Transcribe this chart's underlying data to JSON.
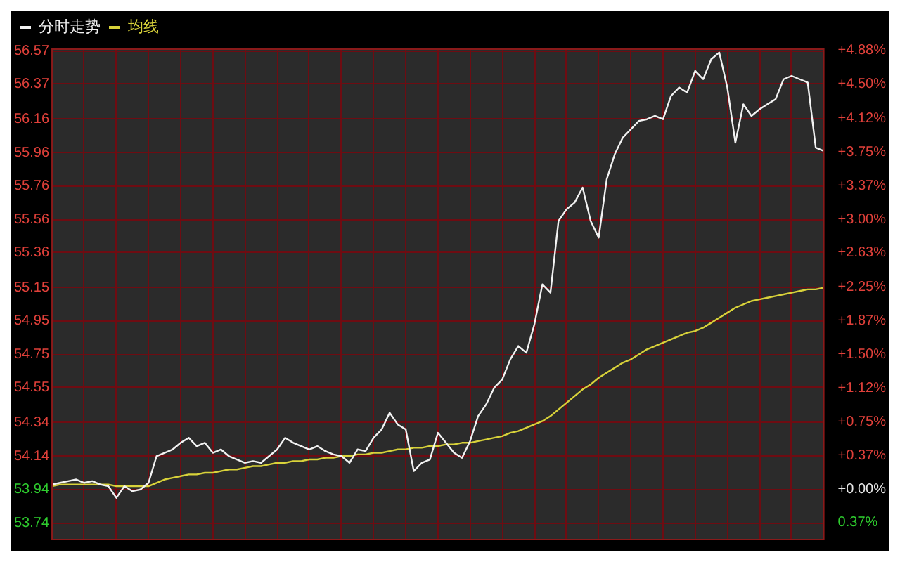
{
  "chart_data": {
    "type": "line",
    "categories": [
      null,
      null,
      null,
      null,
      null,
      null,
      null,
      null,
      null,
      null,
      null,
      null,
      null,
      null,
      null,
      null,
      null,
      null,
      null,
      null,
      null,
      null,
      null,
      null,
      null,
      null,
      null,
      null,
      null,
      null,
      null,
      null,
      null,
      null,
      null,
      null,
      null,
      null,
      null,
      null,
      null,
      null,
      null,
      null,
      null,
      null,
      null,
      null,
      null,
      null,
      null,
      null,
      null,
      null,
      null,
      null,
      null,
      null,
      null,
      null,
      null,
      null,
      null,
      null,
      null,
      null,
      null,
      null,
      null,
      null,
      null,
      null,
      null,
      null,
      null,
      null,
      null,
      null,
      null,
      null,
      null,
      null,
      null,
      null,
      null,
      null,
      null,
      null,
      null,
      null,
      null,
      null,
      null,
      null,
      null,
      null,
      null
    ],
    "series": [
      {
        "name": "分时走势",
        "color": "#f2f2f2",
        "values": [
          53.97,
          53.98,
          53.99,
          54.0,
          53.98,
          53.99,
          53.97,
          53.96,
          53.89,
          53.96,
          53.93,
          53.94,
          53.98,
          54.14,
          54.16,
          54.18,
          54.22,
          54.25,
          54.2,
          54.22,
          54.16,
          54.18,
          54.14,
          54.12,
          54.1,
          54.11,
          54.1,
          54.14,
          54.18,
          54.25,
          54.22,
          54.2,
          54.18,
          54.2,
          54.17,
          54.15,
          54.14,
          54.1,
          54.18,
          54.17,
          54.25,
          54.3,
          54.4,
          54.33,
          54.3,
          54.05,
          54.1,
          54.12,
          54.28,
          54.22,
          54.16,
          54.13,
          54.23,
          54.38,
          54.45,
          54.55,
          54.6,
          54.72,
          54.8,
          54.76,
          54.93,
          55.17,
          55.12,
          55.55,
          55.62,
          55.66,
          55.75,
          55.55,
          55.45,
          55.8,
          55.95,
          56.05,
          56.1,
          56.15,
          56.16,
          56.18,
          56.16,
          56.3,
          56.35,
          56.32,
          56.45,
          56.4,
          56.52,
          56.56,
          56.35,
          56.02,
          56.25,
          56.18,
          56.22,
          56.25,
          56.28,
          56.4,
          56.42,
          56.4,
          56.38,
          55.99,
          55.97
        ]
      },
      {
        "name": "均线",
        "color": "#d8d23a",
        "values": [
          53.96,
          53.97,
          53.97,
          53.97,
          53.97,
          53.97,
          53.97,
          53.97,
          53.96,
          53.96,
          53.96,
          53.96,
          53.96,
          53.98,
          54.0,
          54.01,
          54.02,
          54.03,
          54.03,
          54.04,
          54.04,
          54.05,
          54.06,
          54.06,
          54.07,
          54.08,
          54.08,
          54.09,
          54.1,
          54.1,
          54.11,
          54.11,
          54.12,
          54.12,
          54.13,
          54.13,
          54.14,
          54.14,
          54.15,
          54.15,
          54.16,
          54.16,
          54.17,
          54.18,
          54.18,
          54.19,
          54.19,
          54.2,
          54.2,
          54.21,
          54.21,
          54.22,
          54.22,
          54.23,
          54.24,
          54.25,
          54.26,
          54.28,
          54.29,
          54.31,
          54.33,
          54.35,
          54.38,
          54.42,
          54.46,
          54.5,
          54.54,
          54.57,
          54.61,
          54.64,
          54.67,
          54.7,
          54.72,
          54.75,
          54.78,
          54.8,
          54.82,
          54.84,
          54.86,
          54.88,
          54.89,
          54.91,
          54.94,
          54.97,
          55.0,
          55.03,
          55.05,
          55.07,
          55.08,
          55.09,
          55.1,
          55.11,
          55.12,
          55.13,
          55.14,
          55.14,
          55.15
        ]
      }
    ],
    "ylim": [
      53.64,
      56.58
    ],
    "yticks": [
      56.57,
      56.37,
      56.16,
      55.96,
      55.76,
      55.56,
      55.36,
      55.15,
      54.95,
      54.75,
      54.55,
      54.34,
      54.14,
      53.94,
      53.74
    ],
    "y2lim": [
      -0.56,
      4.89
    ],
    "y2ticks": [
      {
        "value": 4.88,
        "label": "+4.88%"
      },
      {
        "value": 4.5,
        "label": "+4.50%"
      },
      {
        "value": 4.12,
        "label": "+4.12%"
      },
      {
        "value": 3.75,
        "label": "+3.75%"
      },
      {
        "value": 3.37,
        "label": "+3.37%"
      },
      {
        "value": 3.0,
        "label": "+3.00%"
      },
      {
        "value": 2.63,
        "label": "+2.63%"
      },
      {
        "value": 2.25,
        "label": "+2.25%"
      },
      {
        "value": 1.87,
        "label": "+1.87%"
      },
      {
        "value": 1.5,
        "label": "+1.50%"
      },
      {
        "value": 1.12,
        "label": "+1.12%"
      },
      {
        "value": 0.75,
        "label": "+0.75%"
      },
      {
        "value": 0.37,
        "label": "+0.37%"
      },
      {
        "value": 0,
        "label": "+0.00%"
      },
      {
        "value": -0.37,
        "label": "0.37%"
      }
    ],
    "grid": true,
    "legend": "top left",
    "tick_labels": "y",
    "marker": "none",
    "line_style": "solid"
  }
}
